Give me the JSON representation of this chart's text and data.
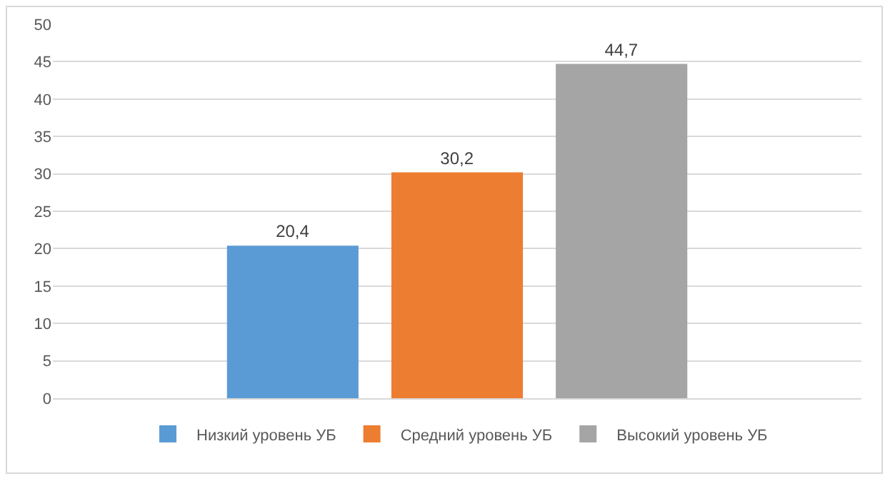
{
  "chart_data": {
    "type": "bar",
    "categories": [
      null
    ],
    "series": [
      {
        "name": "Низкий уровень УБ",
        "color": "#5b9bd5",
        "values": [
          20.4
        ],
        "value_labels": [
          "20,4"
        ]
      },
      {
        "name": "Средний уровень УБ",
        "color": "#ed7d31",
        "values": [
          30.2
        ],
        "value_labels": [
          "30,2"
        ]
      },
      {
        "name": "Высокий уровень УБ",
        "color": "#a5a5a5",
        "values": [
          44.7
        ],
        "value_labels": [
          "44,7"
        ]
      }
    ],
    "ylim": [
      0,
      50
    ],
    "yticks": [
      0,
      5,
      10,
      15,
      20,
      25,
      30,
      35,
      40,
      45,
      50
    ],
    "grid": "y",
    "legend": "bottom",
    "tick_labels": "y"
  }
}
